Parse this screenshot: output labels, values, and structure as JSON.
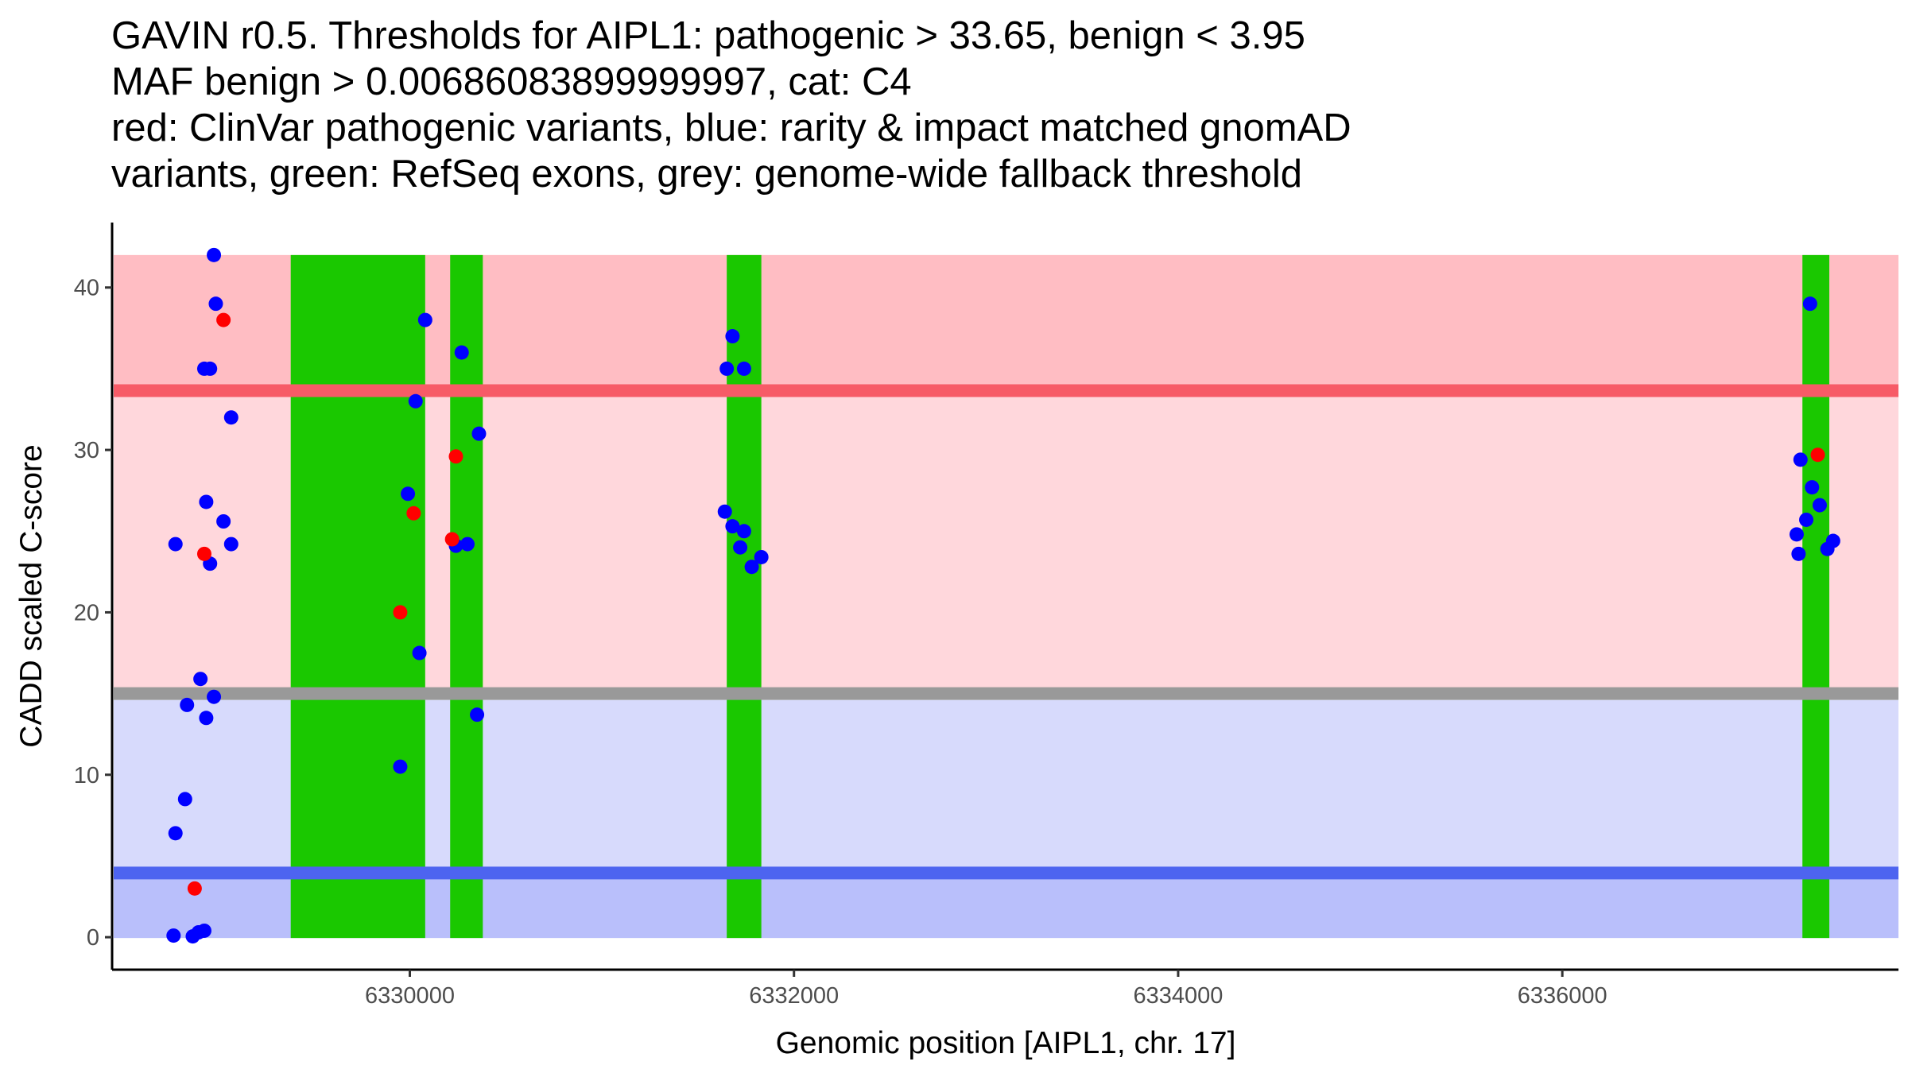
{
  "chart_data": {
    "type": "scatter",
    "title_lines": [
      "GAVIN r0.5. Thresholds for AIPL1: pathogenic > 33.65, benign < 3.95",
      "MAF benign > 0.00686083899999997, cat: C4",
      "red: ClinVar pathogenic variants, blue: rarity & impact matched gnomAD",
      "variants, green: RefSeq exons, grey: genome-wide fallback threshold"
    ],
    "xlabel": "Genomic position [AIPL1, chr. 17]",
    "ylabel": "CADD scaled C-score",
    "xlim": [
      6328450,
      6337750
    ],
    "ylim": [
      -2,
      44
    ],
    "x_ticks": [
      6330000,
      6332000,
      6334000,
      6336000
    ],
    "y_ticks": [
      0,
      10,
      20,
      30,
      40
    ],
    "regions": {
      "pathogenic_high": {
        "ymin": 33.65,
        "ymax": 42,
        "color": "#ffbdc3"
      },
      "pathogenic_mid": {
        "ymin": 15.3,
        "ymax": 33.65,
        "color": "#ffd7dc"
      },
      "benign_mid": {
        "ymin": 3.95,
        "ymax": 14.6,
        "color": "#d7dafc"
      },
      "benign_low": {
        "ymin": -0.05,
        "ymax": 3.95,
        "color": "#b9bffb"
      }
    },
    "threshold_lines": [
      {
        "name": "pathogenic",
        "y": 33.65,
        "color": "#f75b67"
      },
      {
        "name": "fallback",
        "y": 15.0,
        "color": "#999999"
      },
      {
        "name": "benign",
        "y": 3.95,
        "color": "#4d64f0"
      }
    ],
    "exons": [
      {
        "start": 6329380,
        "end": 6330080
      },
      {
        "start": 6330210,
        "end": 6330380
      },
      {
        "start": 6331650,
        "end": 6331830
      },
      {
        "start": 6337250,
        "end": 6337390
      }
    ],
    "series": [
      {
        "name": "ClinVar pathogenic",
        "color": "#ff0000",
        "points": [
          [
            6329030,
            38
          ],
          [
            6328930,
            23.6
          ],
          [
            6328880,
            3.0
          ],
          [
            6329950,
            20
          ],
          [
            6330020,
            26.1
          ],
          [
            6330240,
            29.6
          ],
          [
            6330220,
            24.5
          ],
          [
            6337330,
            29.7
          ]
        ]
      },
      {
        "name": "gnomAD matched",
        "color": "#0000ff",
        "points": [
          [
            6328980,
            42
          ],
          [
            6328990,
            39
          ],
          [
            6328930,
            35
          ],
          [
            6328960,
            35
          ],
          [
            6329070,
            32
          ],
          [
            6328940,
            26.8
          ],
          [
            6329030,
            25.6
          ],
          [
            6328780,
            24.2
          ],
          [
            6329070,
            24.2
          ],
          [
            6328960,
            23.0
          ],
          [
            6328910,
            15.9
          ],
          [
            6328840,
            14.3
          ],
          [
            6328980,
            14.8
          ],
          [
            6328940,
            13.5
          ],
          [
            6328830,
            8.5
          ],
          [
            6328780,
            6.4
          ],
          [
            6328770,
            0.1
          ],
          [
            6328870,
            0.05
          ],
          [
            6328900,
            0.3
          ],
          [
            6328930,
            0.4
          ],
          [
            6330080,
            38
          ],
          [
            6330030,
            33
          ],
          [
            6329990,
            27.3
          ],
          [
            6330050,
            17.5
          ],
          [
            6329950,
            10.5
          ],
          [
            6330270,
            36
          ],
          [
            6330360,
            31
          ],
          [
            6330240,
            24.1
          ],
          [
            6330300,
            24.2
          ],
          [
            6330350,
            13.7
          ],
          [
            6331680,
            37
          ],
          [
            6331650,
            35
          ],
          [
            6331740,
            35
          ],
          [
            6331640,
            26.2
          ],
          [
            6331680,
            25.3
          ],
          [
            6331740,
            25.0
          ],
          [
            6331720,
            24.0
          ],
          [
            6331780,
            22.8
          ],
          [
            6331830,
            23.4
          ],
          [
            6337290,
            39
          ],
          [
            6337240,
            29.4
          ],
          [
            6337300,
            27.7
          ],
          [
            6337340,
            26.6
          ],
          [
            6337270,
            25.7
          ],
          [
            6337220,
            24.8
          ],
          [
            6337230,
            23.6
          ],
          [
            6337410,
            24.4
          ],
          [
            6337380,
            23.9
          ]
        ]
      }
    ]
  }
}
